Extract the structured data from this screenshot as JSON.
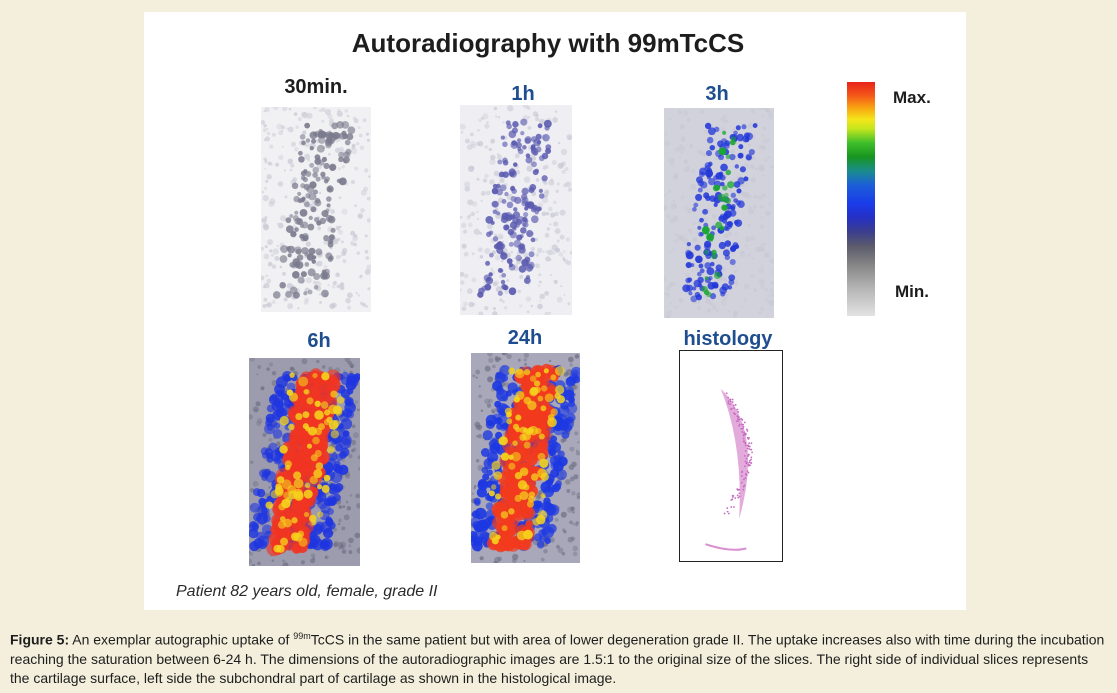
{
  "figure": {
    "title": "Autoradiography with 99mTcCS",
    "timepoints": [
      {
        "label": "30min.",
        "colors": [
          "#f1f1f3",
          "#7b7b8e",
          "#4d4d86"
        ]
      },
      {
        "label": "1h",
        "colors": [
          "#eeeef3",
          "#5a5ab0",
          "#2a35c8"
        ]
      },
      {
        "label": "3h",
        "colors": [
          "#d2d2dc",
          "#2237d8",
          "#19a631"
        ]
      },
      {
        "label": "6h",
        "colors": [
          "#9c9cae",
          "#1f35e0",
          "#f03522"
        ]
      },
      {
        "label": "24h",
        "colors": [
          "#a8a8ba",
          "#1d38e2",
          "#f23a1e"
        ]
      },
      {
        "label": "histology",
        "colors": [
          "#ffffff",
          "#d98fd0",
          "#c66ac0"
        ]
      }
    ],
    "colorbar": {
      "max_label": "Max.",
      "min_label": "Min."
    },
    "patient_note": "Patient 82 years old, female, grade II"
  },
  "caption": {
    "label": "Figure 5:",
    "text_before_sup": " An exemplar autographic uptake of ",
    "superscript": "99m",
    "text_after_sup": "TcCS in the same patient but with area of lower degeneration grade II. The uptake increases also with time during the incubation reaching the saturation between 6-24 h. The dimensions of the autoradiographic images are 1.5:1 to the original size of the slices. The right side of individual slices represents the cartilage surface, left side the subchondral part of cartilage as shown in the histological image."
  }
}
